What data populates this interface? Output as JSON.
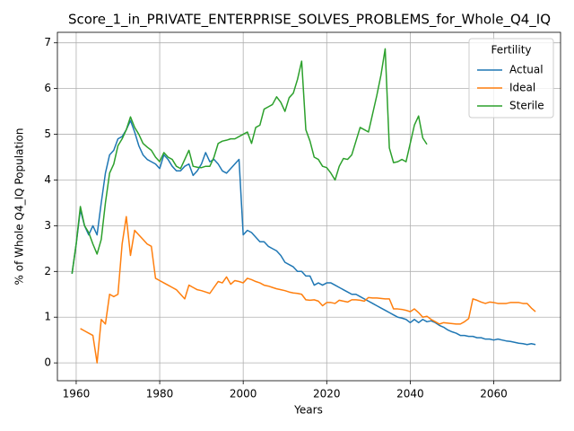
{
  "chart_data": {
    "type": "line",
    "title": "Score_1_in_PRIVATE_ENTERPRISE_SOLVES_PROBLEMS_for_Whole_Q4_IQ",
    "xlabel": "Years",
    "ylabel": "% of Whole Q4_IQ Population",
    "legend_title": "Fertility",
    "legend": "upper right",
    "grid": true,
    "xlim": [
      1955.5,
      2076
    ],
    "ylim": [
      -0.39,
      7.23
    ],
    "xticks": [
      1960,
      1980,
      2000,
      2020,
      2040,
      2060
    ],
    "yticks": [
      0,
      1,
      2,
      3,
      4,
      5,
      6,
      7
    ],
    "x": [
      1959,
      1960,
      1961,
      1962,
      1963,
      1964,
      1965,
      1966,
      1967,
      1968,
      1969,
      1970,
      1971,
      1972,
      1973,
      1974,
      1975,
      1976,
      1977,
      1978,
      1979,
      1980,
      1981,
      1982,
      1983,
      1984,
      1985,
      1986,
      1987,
      1988,
      1989,
      1990,
      1991,
      1992,
      1993,
      1994,
      1995,
      1996,
      1997,
      1998,
      1999,
      2000,
      2001,
      2002,
      2003,
      2004,
      2005,
      2006,
      2007,
      2008,
      2009,
      2010,
      2011,
      2012,
      2013,
      2014,
      2015,
      2016,
      2017,
      2018,
      2019,
      2020,
      2021,
      2022,
      2023,
      2024,
      2025,
      2026,
      2027,
      2028,
      2029,
      2030,
      2031,
      2032,
      2033,
      2034,
      2035,
      2036,
      2037,
      2038,
      2039,
      2040,
      2041,
      2042,
      2043,
      2044,
      2045,
      2046,
      2047,
      2048,
      2049,
      2050,
      2051,
      2052,
      2053,
      2054,
      2055,
      2056,
      2057,
      2058,
      2059,
      2060,
      2061,
      2062,
      2063,
      2064,
      2065,
      2066,
      2067,
      2068,
      2069,
      2070
    ],
    "series": [
      {
        "name": "Actual",
        "color": "#1f77b4",
        "values": [
          1.95,
          2.6,
          3.35,
          3.0,
          2.8,
          3.0,
          2.8,
          3.5,
          4.15,
          4.55,
          4.65,
          4.9,
          4.95,
          5.1,
          5.3,
          5.05,
          4.75,
          4.55,
          4.45,
          4.4,
          4.35,
          4.25,
          4.55,
          4.45,
          4.3,
          4.2,
          4.2,
          4.3,
          4.35,
          4.1,
          4.2,
          4.35,
          4.6,
          4.4,
          4.45,
          4.35,
          4.2,
          4.15,
          4.25,
          4.35,
          4.45,
          2.8,
          2.9,
          2.85,
          2.75,
          2.65,
          2.65,
          2.55,
          2.5,
          2.45,
          2.35,
          2.2,
          2.15,
          2.1,
          2.0,
          2.0,
          1.9,
          1.9,
          1.7,
          1.75,
          1.7,
          1.75,
          1.75,
          1.7,
          1.65,
          1.6,
          1.55,
          1.5,
          1.5,
          1.45,
          1.4,
          1.35,
          1.3,
          1.25,
          1.2,
          1.15,
          1.1,
          1.05,
          1.0,
          0.98,
          0.95,
          0.88,
          0.95,
          0.88,
          0.95,
          0.9,
          0.92,
          0.88,
          0.82,
          0.78,
          0.72,
          0.68,
          0.65,
          0.6,
          0.6,
          0.58,
          0.58,
          0.55,
          0.55,
          0.52,
          0.52,
          0.5,
          0.52,
          0.5,
          0.48,
          0.47,
          0.45,
          0.43,
          0.42,
          0.4,
          0.42,
          0.4
        ]
      },
      {
        "name": "Ideal",
        "color": "#ff7f0e",
        "values": [
          null,
          null,
          0.75,
          0.7,
          0.65,
          0.6,
          0.0,
          0.95,
          0.85,
          1.5,
          1.45,
          1.5,
          2.6,
          3.2,
          2.35,
          2.9,
          2.8,
          2.7,
          2.6,
          2.55,
          1.85,
          1.8,
          1.75,
          1.7,
          1.65,
          1.6,
          1.5,
          1.4,
          1.7,
          1.65,
          1.6,
          1.58,
          1.55,
          1.52,
          1.65,
          1.78,
          1.75,
          1.88,
          1.72,
          1.8,
          1.78,
          1.75,
          1.85,
          1.82,
          1.78,
          1.75,
          1.7,
          1.68,
          1.65,
          1.62,
          1.6,
          1.58,
          1.55,
          1.53,
          1.52,
          1.5,
          1.38,
          1.37,
          1.38,
          1.35,
          1.25,
          1.32,
          1.32,
          1.3,
          1.37,
          1.35,
          1.33,
          1.38,
          1.38,
          1.37,
          1.35,
          1.43,
          1.42,
          1.42,
          1.41,
          1.4,
          1.4,
          1.18,
          1.18,
          1.17,
          1.15,
          1.12,
          1.18,
          1.1,
          1.0,
          1.02,
          0.95,
          0.9,
          0.85,
          0.88,
          0.87,
          0.86,
          0.85,
          0.85,
          0.9,
          0.97,
          1.4,
          1.37,
          1.33,
          1.3,
          1.33,
          1.32,
          1.3,
          1.3,
          1.3,
          1.32,
          1.32,
          1.32,
          1.3,
          1.3,
          1.2,
          1.12
        ]
      },
      {
        "name": "Sterile",
        "color": "#2ca02c",
        "values": [
          1.95,
          2.6,
          3.42,
          3.0,
          2.85,
          2.6,
          2.38,
          2.7,
          3.5,
          4.15,
          4.35,
          4.75,
          4.9,
          5.1,
          5.38,
          5.15,
          5.0,
          4.8,
          4.72,
          4.65,
          4.5,
          4.4,
          4.6,
          4.5,
          4.45,
          4.3,
          4.25,
          4.45,
          4.65,
          4.3,
          4.28,
          4.27,
          4.3,
          4.3,
          4.5,
          4.8,
          4.85,
          4.87,
          4.9,
          4.9,
          4.95,
          5.0,
          5.05,
          4.8,
          5.15,
          5.2,
          5.55,
          5.6,
          5.65,
          5.82,
          5.7,
          5.5,
          5.8,
          5.9,
          6.2,
          6.6,
          5.1,
          4.85,
          4.5,
          4.45,
          4.3,
          4.27,
          4.15,
          4.0,
          4.3,
          4.47,
          4.45,
          4.55,
          4.85,
          5.15,
          5.1,
          5.05,
          5.45,
          5.85,
          6.3,
          6.87,
          4.7,
          4.38,
          4.4,
          4.45,
          4.4,
          4.8,
          5.2,
          5.4,
          4.92,
          4.78,
          null,
          null,
          null,
          null,
          null,
          null,
          null,
          null,
          null,
          null,
          null,
          null,
          null,
          null,
          null,
          null,
          null,
          null,
          null,
          null,
          null,
          null,
          null,
          null,
          null,
          null
        ]
      }
    ]
  }
}
